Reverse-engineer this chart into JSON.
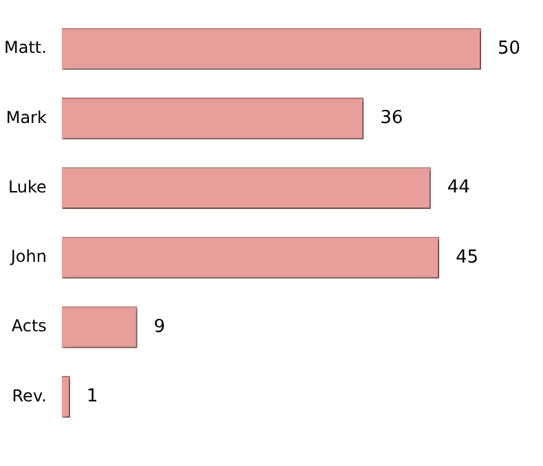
{
  "chart_data": {
    "type": "bar",
    "orientation": "horizontal",
    "categories": [
      "Matt.",
      "Mark",
      "Luke",
      "John",
      "Acts",
      "Rev."
    ],
    "values": [
      50,
      36,
      44,
      45,
      9,
      1
    ],
    "color": "#e89e9b",
    "data_labels": true
  }
}
